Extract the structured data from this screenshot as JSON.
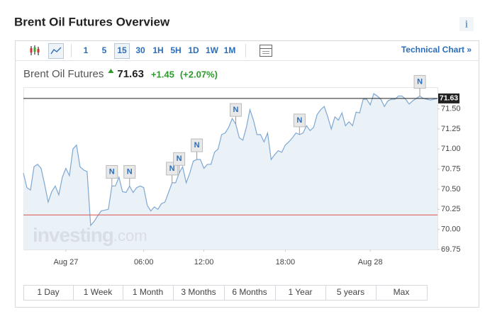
{
  "header": {
    "title": "Brent Oil Futures Overview",
    "info": "i"
  },
  "toolbar": {
    "intervals": [
      "1",
      "5",
      "15",
      "30",
      "1H",
      "5H",
      "1D",
      "1W",
      "1M"
    ],
    "selected_interval": 2,
    "technical_chart": "Technical Chart »"
  },
  "quote": {
    "name": "Brent Oil Futures",
    "change": "+1.45",
    "change_percent": "(+2.07%)"
  },
  "chart_data": {
    "type": "area",
    "color": "#7fa8d2",
    "fill": "#e6eef6",
    "last": 71.63,
    "previous_close": 70.18,
    "values": [
      70.7,
      70.52,
      70.49,
      70.78,
      70.81,
      70.76,
      70.56,
      70.34,
      70.47,
      70.54,
      70.43,
      70.65,
      70.76,
      70.67,
      71.0,
      71.05,
      70.78,
      70.74,
      70.72,
      70.05,
      70.1,
      70.17,
      70.23,
      70.24,
      70.25,
      70.54,
      70.54,
      70.65,
      70.47,
      70.46,
      70.54,
      70.46,
      70.52,
      70.54,
      70.52,
      70.3,
      70.23,
      70.28,
      70.25,
      70.32,
      70.34,
      70.46,
      70.58,
      70.58,
      70.7,
      70.78,
      70.58,
      70.7,
      70.85,
      70.87,
      70.87,
      70.76,
      70.81,
      70.81,
      70.96,
      71.0,
      71.18,
      71.2,
      71.27,
      71.38,
      71.31,
      71.14,
      71.11,
      71.27,
      71.49,
      71.36,
      71.18,
      71.18,
      71.09,
      71.2,
      70.87,
      70.93,
      70.98,
      70.96,
      71.05,
      71.09,
      71.14,
      71.2,
      71.18,
      71.2,
      71.29,
      71.23,
      71.27,
      71.43,
      71.49,
      71.53,
      71.4,
      71.25,
      71.4,
      71.36,
      71.45,
      71.29,
      71.34,
      71.29,
      71.46,
      71.45,
      71.62,
      71.62,
      71.55,
      71.69,
      71.66,
      71.62,
      71.53,
      71.6,
      71.62,
      71.62,
      71.66,
      71.66,
      71.62,
      71.56,
      71.6,
      71.63,
      71.66,
      71.63,
      71.62,
      71.61,
      71.62,
      71.63
    ],
    "xlim": [
      0,
      117
    ],
    "xticks": [
      {
        "value": 12,
        "label": "Aug 27"
      },
      {
        "value": 34,
        "label": "06:00"
      },
      {
        "value": 51,
        "label": "12:00"
      },
      {
        "value": 74,
        "label": "18:00"
      },
      {
        "value": 98,
        "label": "Aug 28"
      }
    ],
    "ylim": [
      69.75,
      71.77
    ],
    "yticks": [
      69.75,
      {
        "value": 70,
        "label": "70.00"
      },
      70.25,
      {
        "value": 70.5,
        "label": "70.50"
      },
      70.75,
      {
        "value": 71,
        "label": "71.00"
      },
      71.25,
      {
        "value": 71.5,
        "label": "71.50"
      }
    ],
    "annotations": [
      {
        "x": 25,
        "label": "N"
      },
      {
        "x": 30,
        "label": "N"
      },
      {
        "x": 42,
        "label": "N"
      },
      {
        "x": 44,
        "label": "N"
      },
      {
        "x": 49,
        "label": "N"
      },
      {
        "x": 60,
        "label": "N"
      },
      {
        "x": 78,
        "label": "N"
      },
      {
        "x": 112,
        "label": "N"
      }
    ]
  },
  "watermark": {
    "brand": "investing",
    "suffix": ".com"
  },
  "ranges": [
    "1 Day",
    "1 Week",
    "1 Month",
    "3 Months",
    "6 Months",
    "1 Year",
    "5 years",
    "Max"
  ]
}
